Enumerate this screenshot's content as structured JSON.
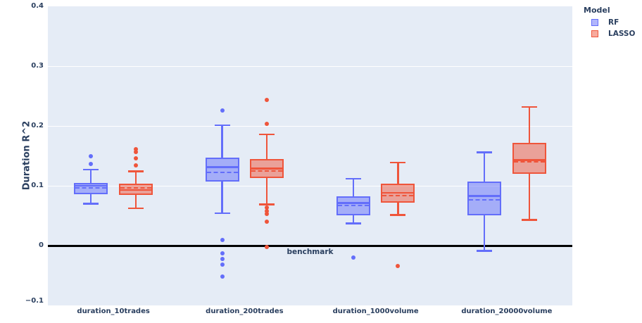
{
  "chart_data": {
    "type": "box",
    "ylabel": "Duration R^2",
    "categories": [
      "duration_10trades",
      "duration_200trades",
      "duration_1000volume",
      "duration_20000volume"
    ],
    "ylim": [
      -0.1,
      0.4
    ],
    "yticks": [
      {
        "v": 0.4,
        "label": "0.4"
      },
      {
        "v": 0.3,
        "label": "0.3"
      },
      {
        "v": 0.2,
        "label": "0.2"
      },
      {
        "v": 0.1,
        "label": "0.1"
      },
      {
        "v": 0,
        "label": "0"
      },
      {
        "v": -0.1,
        "label": "−0.1"
      }
    ],
    "grid": true,
    "bg_color": "#E5ECF6",
    "grid_color": "#FFFFFF",
    "text_color": "#2a3f5f",
    "legend": {
      "title": "Model",
      "position": "top-right"
    },
    "benchmark": {
      "y": 0,
      "label": "benchmark",
      "color": "#000000"
    },
    "series": [
      {
        "name": "RF",
        "color": "#636EFA",
        "boxes": [
          {
            "lo": 0.07,
            "q1": 0.086,
            "med": 0.1,
            "mean": 0.097,
            "q3": 0.105,
            "hi": 0.127,
            "outliers": [
              0.149,
              0.136
            ]
          },
          {
            "lo": 0.054,
            "q1": 0.107,
            "med": 0.131,
            "mean": 0.122,
            "q3": 0.147,
            "hi": 0.201,
            "outliers": [
              0.226,
              0.009,
              -0.013,
              -0.022,
              -0.032,
              -0.052
            ]
          },
          {
            "lo": 0.037,
            "q1": 0.051,
            "med": 0.071,
            "mean": 0.067,
            "q3": 0.082,
            "hi": 0.112,
            "outliers": [
              -0.02
            ]
          },
          {
            "lo": -0.009,
            "q1": 0.051,
            "med": 0.083,
            "mean": 0.076,
            "q3": 0.107,
            "hi": 0.156,
            "outliers": []
          }
        ]
      },
      {
        "name": "LASSO",
        "color": "#EF553B",
        "boxes": [
          {
            "lo": 0.062,
            "q1": 0.085,
            "med": 0.093,
            "mean": 0.096,
            "q3": 0.104,
            "hi": 0.124,
            "outliers": [
              0.161,
              0.156,
              0.146,
              0.134
            ]
          },
          {
            "lo": 0.069,
            "q1": 0.113,
            "med": 0.129,
            "mean": 0.125,
            "q3": 0.145,
            "hi": 0.186,
            "outliers": [
              0.244,
              0.203,
              0.064,
              0.058,
              0.053,
              0.04,
              -0.002
            ]
          },
          {
            "lo": 0.051,
            "q1": 0.072,
            "med": 0.088,
            "mean": 0.084,
            "q3": 0.104,
            "hi": 0.139,
            "outliers": [
              -0.034
            ]
          },
          {
            "lo": 0.043,
            "q1": 0.12,
            "med": 0.143,
            "mean": 0.14,
            "q3": 0.172,
            "hi": 0.232,
            "outliers": []
          }
        ]
      }
    ]
  }
}
